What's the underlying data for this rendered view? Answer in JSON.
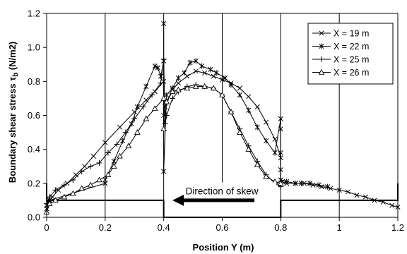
{
  "chart_data": {
    "type": "line",
    "xlabel": "Position Y (m)",
    "ylabel": "Boundary shear stress",
    "ylabel_symbol": "τ",
    "ylabel_subscript": "b",
    "ylabel_unit": "(N/m2)",
    "xlim": [
      0,
      1.2
    ],
    "ylim": [
      0,
      1.2
    ],
    "x_ticks": [
      0,
      0.2,
      0.4,
      0.6,
      0.8,
      1,
      1.2
    ],
    "x_tick_labels": [
      "0",
      "0.2",
      "0.4",
      "0.6",
      "0.8",
      "1",
      "1.2"
    ],
    "y_ticks": [
      0,
      0.2,
      0.4,
      0.6,
      0.8,
      1.0,
      1.2
    ],
    "y_tick_labels": [
      "0.0",
      "0.2",
      "0.4",
      "0.6",
      "0.8",
      "1.0",
      "1.2"
    ],
    "grid": "vertical",
    "legend_position": "top-right",
    "annotation": {
      "text": "Direction of skew",
      "arrow_direction": "left",
      "x_start": 0.71,
      "x_end": 0.43,
      "y": 0.1
    },
    "channel_outline": {
      "x": [
        0,
        0,
        0.4,
        0.4,
        0.8,
        0.8,
        1.2,
        1.2
      ],
      "y": [
        0.2,
        0.1,
        0.1,
        0,
        0,
        0.1,
        0.1,
        0.2
      ]
    },
    "series": [
      {
        "name": "X = 19 m",
        "marker": "x",
        "x": [
          0,
          0.005,
          0.01,
          0.02,
          0.04,
          0.07,
          0.1,
          0.13,
          0.16,
          0.2,
          0.25,
          0.3,
          0.34,
          0.37,
          0.4,
          0.4,
          0.405,
          0.41,
          0.43,
          0.45,
          0.48,
          0.51,
          0.54,
          0.57,
          0.6,
          0.63,
          0.66,
          0.69,
          0.72,
          0.75,
          0.78,
          0.8,
          0.8,
          0.8,
          0.805,
          0.82,
          0.85,
          0.88,
          0.91,
          0.94,
          0.97,
          1.0,
          1.03,
          1.06,
          1.09,
          1.12,
          1.15,
          1.18,
          1.2
        ],
        "y": [
          0.05,
          0.08,
          0.1,
          0.12,
          0.16,
          0.2,
          0.25,
          0.3,
          0.36,
          0.44,
          0.53,
          0.62,
          0.69,
          0.74,
          0.8,
          0.6,
          0.65,
          0.68,
          0.75,
          0.79,
          0.83,
          0.86,
          0.85,
          0.83,
          0.81,
          0.79,
          0.76,
          0.71,
          0.65,
          0.56,
          0.46,
          0.35,
          0.28,
          0.22,
          0.21,
          0.2,
          0.2,
          0.2,
          0.19,
          0.18,
          0.17,
          0.16,
          0.15,
          0.13,
          0.12,
          0.1,
          0.09,
          0.07,
          0.06
        ]
      },
      {
        "name": "X = 22 m",
        "marker": "asterisk",
        "x": [
          0,
          0.01,
          0.2,
          0.2,
          0.23,
          0.26,
          0.29,
          0.31,
          0.34,
          0.37,
          0.38,
          0.39,
          0.4,
          0.4,
          0.4,
          0.41,
          0.43,
          0.45,
          0.47,
          0.49,
          0.51,
          0.53,
          0.56,
          0.58,
          0.61,
          0.63,
          0.66,
          0.69,
          0.72,
          0.75,
          0.78,
          0.8,
          0.8,
          0.8,
          0.8,
          0.82,
          0.85,
          0.87,
          0.9,
          0.93,
          0.96
        ],
        "y": [
          0.07,
          0.1,
          0.2,
          0.22,
          0.33,
          0.45,
          0.55,
          0.65,
          0.77,
          0.89,
          0.88,
          0.83,
          0.92,
          1.14,
          0.27,
          0.72,
          0.76,
          0.82,
          0.85,
          0.91,
          0.92,
          0.89,
          0.87,
          0.85,
          0.82,
          0.78,
          0.72,
          0.63,
          0.53,
          0.45,
          0.38,
          0.58,
          0.52,
          0.38,
          0.22,
          0.21,
          0.2,
          0.2,
          0.2,
          0.19,
          0.18
        ]
      },
      {
        "name": "X = 25 m",
        "marker": "plus",
        "x": [
          0,
          0.01,
          0.03,
          0.06,
          0.09,
          0.12,
          0.15,
          0.18,
          0.21,
          0.24,
          0.27,
          0.3,
          0.33,
          0.36,
          0.39,
          0.4,
          0.405,
          0.41,
          0.43,
          0.45,
          0.48,
          0.51,
          0.54,
          0.57,
          0.6,
          0.63,
          0.66,
          0.69,
          0.72,
          0.75,
          0.78,
          0.8
        ],
        "y": [
          0.08,
          0.12,
          0.16,
          0.19,
          0.22,
          0.27,
          0.3,
          0.32,
          0.38,
          0.43,
          0.5,
          0.58,
          0.65,
          0.72,
          0.79,
          0.93,
          0.55,
          0.6,
          0.7,
          0.74,
          0.77,
          0.78,
          0.77,
          0.76,
          0.72,
          0.62,
          0.52,
          0.42,
          0.33,
          0.25,
          0.2,
          0.18
        ]
      },
      {
        "name": "X = 26 m",
        "marker": "triangle",
        "x": [
          0,
          0.01,
          0.03,
          0.06,
          0.09,
          0.12,
          0.15,
          0.18,
          0.21,
          0.23,
          0.25,
          0.28,
          0.31,
          0.34,
          0.37,
          0.4,
          0.4,
          0.41,
          0.43,
          0.45,
          0.48,
          0.51,
          0.54,
          0.57,
          0.6,
          0.63,
          0.66,
          0.69,
          0.72,
          0.75,
          0.78,
          0.8
        ],
        "y": [
          0.03,
          0.08,
          0.1,
          0.12,
          0.14,
          0.17,
          0.19,
          0.22,
          0.25,
          0.3,
          0.36,
          0.42,
          0.5,
          0.58,
          0.64,
          0.7,
          0.52,
          0.68,
          0.74,
          0.75,
          0.76,
          0.77,
          0.77,
          0.76,
          0.72,
          0.62,
          0.5,
          0.4,
          0.31,
          0.24,
          0.21,
          0.2
        ]
      }
    ]
  }
}
